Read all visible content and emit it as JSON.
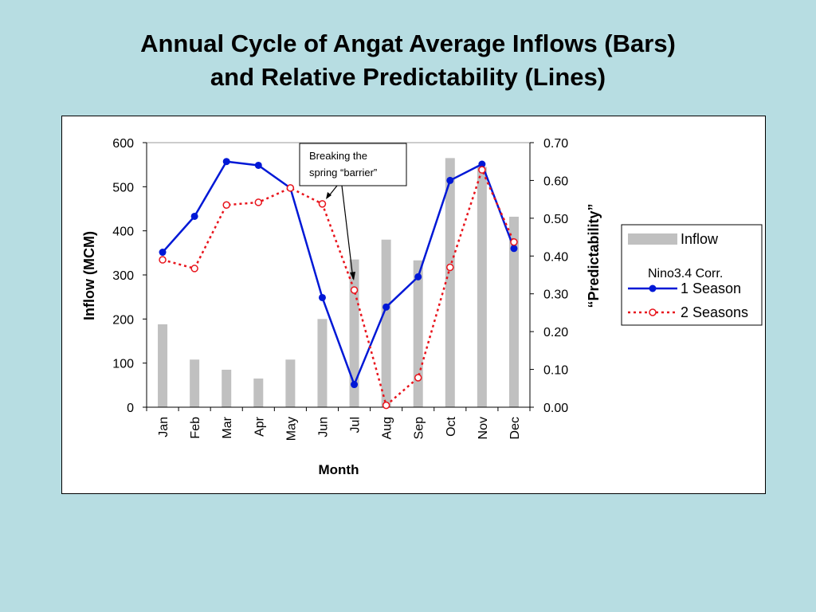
{
  "title": {
    "line1": "Annual Cycle of Angat Average Inflows (Bars)",
    "line2": "and Relative Predictability (Lines)"
  },
  "chart_data": {
    "type": "bar",
    "categories": [
      "Jan",
      "Feb",
      "Mar",
      "Apr",
      "May",
      "Jun",
      "Jul",
      "Aug",
      "Sep",
      "Oct",
      "Nov",
      "Dec"
    ],
    "xlabel": "Month",
    "ylabel": "Inflow (MCM)",
    "y2label": "“Predictability”",
    "ylim": [
      0,
      600
    ],
    "y2lim": [
      0,
      0.7
    ],
    "yticks": [
      "0",
      "100",
      "200",
      "300",
      "400",
      "500",
      "600"
    ],
    "y2ticks": [
      "0.00",
      "0.10",
      "0.20",
      "0.30",
      "0.40",
      "0.50",
      "0.60",
      "0.70"
    ],
    "bars": {
      "name": "Inflow",
      "color": "#c0c0c0",
      "values": [
        188,
        108,
        85,
        65,
        108,
        200,
        335,
        380,
        333,
        565,
        545,
        432
      ]
    },
    "legend_group_label": "Nino3.4  Corr.",
    "series": [
      {
        "name": "1 Season",
        "color": "#0018d6",
        "style": "solid",
        "marker": "filled-circle",
        "axis": "y2",
        "values": [
          0.41,
          0.505,
          0.65,
          0.64,
          0.58,
          0.29,
          0.06,
          0.265,
          0.345,
          0.6,
          0.643,
          0.42
        ]
      },
      {
        "name": "2 Seasons",
        "color": "#e8141c",
        "style": "dotted",
        "marker": "open-circle",
        "axis": "y2",
        "values": [
          0.39,
          0.367,
          0.535,
          0.542,
          0.58,
          0.538,
          0.31,
          0.005,
          0.078,
          0.37,
          0.628,
          0.437
        ]
      }
    ],
    "annotation": {
      "lines": [
        "Breaking the",
        "spring “barrier”"
      ]
    },
    "legend_position": "right",
    "grid": false
  }
}
